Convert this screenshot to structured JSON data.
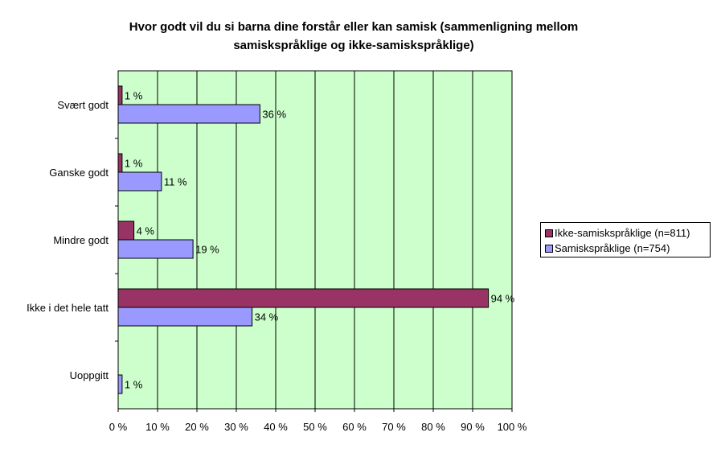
{
  "chart_data": {
    "type": "bar",
    "orientation": "horizontal",
    "title": "Hvor godt vil du si barna dine forstår eller kan samisk (sammenligning mellom samiskspråklige og ikke-samiskspråklige)",
    "title_lines": [
      "Hvor godt vil du si barna dine forstår eller kan samisk (sammenligning mellom",
      "samiskspråklige og ikke-samiskspråklige)"
    ],
    "categories": [
      "Svært godt",
      "Ganske godt",
      "Mindre godt",
      "Ikke i det hele tatt",
      "Uoppgitt"
    ],
    "series": [
      {
        "name": "Ikke-samiskspråklige (n=811)",
        "color": "#993366",
        "values": [
          1,
          1,
          4,
          94,
          null
        ],
        "labels": [
          "1 %",
          "1 %",
          "4 %",
          "94 %",
          ""
        ]
      },
      {
        "name": "Samiskspråklige (n=754)",
        "color": "#9999ff",
        "values": [
          36,
          11,
          19,
          34,
          1
        ],
        "labels": [
          "36 %",
          "11 %",
          "19 %",
          "34 %",
          "1 %"
        ]
      }
    ],
    "xlim": [
      0,
      100
    ],
    "xticks": [
      "0 %",
      "10 %",
      "20 %",
      "30 %",
      "40 %",
      "50 %",
      "60 %",
      "70 %",
      "80 %",
      "90 %",
      "100 %"
    ],
    "xlabel": "",
    "ylabel": "",
    "grid": true,
    "legend_position": "right",
    "plot_background": "#ccffcc"
  }
}
